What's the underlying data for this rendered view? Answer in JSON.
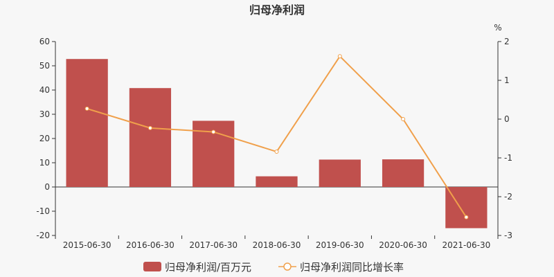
{
  "chart_data": {
    "type": "bar",
    "title": "归母净利润",
    "categories": [
      "2015-06-30",
      "2016-06-30",
      "2017-06-30",
      "2018-06-30",
      "2019-06-30",
      "2020-06-30",
      "2021-06-30"
    ],
    "series": [
      {
        "name": "归母净利润/百万元",
        "type": "bar",
        "axis": "left",
        "color": "#c0504d",
        "values": [
          52.8,
          40.8,
          27.3,
          4.4,
          11.3,
          11.4,
          -17.0
        ]
      },
      {
        "name": "归母净利润同比增长率",
        "type": "line",
        "axis": "right",
        "color": "#f0a04b",
        "values": [
          0.27,
          -0.23,
          -0.33,
          -0.84,
          1.62,
          0.0,
          -2.53
        ]
      }
    ],
    "y_left": {
      "min": -20,
      "max": 60,
      "ticks": [
        60,
        50,
        40,
        30,
        20,
        10,
        0,
        -10,
        -20
      ]
    },
    "y_right": {
      "label": "%",
      "min": -3,
      "max": 2,
      "ticks": [
        2,
        1,
        0,
        -1,
        -2,
        -3
      ]
    },
    "grid": false,
    "legend_position": "bottom"
  }
}
